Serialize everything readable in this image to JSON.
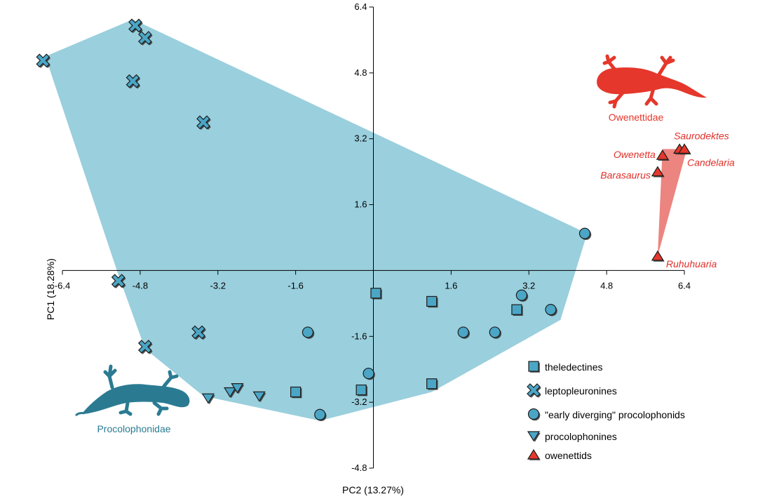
{
  "chart_data": {
    "type": "scatter",
    "xlabel": "PC2 (13.27%)",
    "ylabel": "PC1 (18.28%)",
    "xlim": [
      -6.4,
      6.4
    ],
    "ylim": [
      -4.8,
      6.4
    ],
    "x_ticks": [
      -6.4,
      -4.8,
      -3.2,
      -1.6,
      1.6,
      3.2,
      4.8,
      6.4
    ],
    "y_ticks": [
      6.4,
      4.8,
      3.2,
      1.6,
      -1.6,
      -3.2,
      -4.8
    ],
    "x_tick_labels": [
      "-6.4",
      "-4.8",
      "-3.2",
      "-1.6",
      "1.6",
      "3.2",
      "4.8",
      "6.4"
    ],
    "y_tick_labels": [
      "6.4",
      "4.8",
      "3.2",
      "1.6",
      "-1.6",
      "-3.2",
      "-4.8"
    ],
    "grid": false,
    "legend_position": "bottom-right",
    "colors": {
      "procolophonid": "#4ba6c6",
      "procolophonid_hull": "#9acfdd",
      "owenettid": "#e5372b",
      "owenettid_hull": "#ec8480",
      "procolophonidae_silhouette": "#2a7b92",
      "owenettidae_silhouette": "#e5372b"
    },
    "series": [
      {
        "name": "theledectines",
        "marker": "square",
        "points": [
          {
            "x": 0.05,
            "y": -0.55
          },
          {
            "x": 1.2,
            "y": -0.75
          },
          {
            "x": 2.95,
            "y": -0.95
          },
          {
            "x": -1.6,
            "y": -2.95
          },
          {
            "x": -0.25,
            "y": -2.9
          },
          {
            "x": 1.2,
            "y": -2.75
          }
        ]
      },
      {
        "name": "leptopleuronines",
        "marker": "x",
        "points": [
          {
            "x": -4.9,
            "y": 5.95
          },
          {
            "x": -4.7,
            "y": 5.65
          },
          {
            "x": -6.8,
            "y": 5.1
          },
          {
            "x": -4.95,
            "y": 4.6
          },
          {
            "x": -3.5,
            "y": 3.6
          },
          {
            "x": -5.25,
            "y": -0.25
          },
          {
            "x": -3.6,
            "y": -1.5
          },
          {
            "x": -4.7,
            "y": -1.85
          }
        ]
      },
      {
        "name": "\"early diverging\" procolophonids",
        "marker": "circle",
        "points": [
          {
            "x": 4.35,
            "y": 0.9
          },
          {
            "x": 3.05,
            "y": -0.6
          },
          {
            "x": 3.65,
            "y": -0.95
          },
          {
            "x": 1.85,
            "y": -1.5
          },
          {
            "x": 2.5,
            "y": -1.5
          },
          {
            "x": -1.35,
            "y": -1.5
          },
          {
            "x": -0.1,
            "y": -2.5
          },
          {
            "x": -1.1,
            "y": -3.5
          }
        ]
      },
      {
        "name": "procolophonines",
        "marker": "triangle-down",
        "points": [
          {
            "x": -3.4,
            "y": -3.1
          },
          {
            "x": -2.95,
            "y": -2.95
          },
          {
            "x": -2.8,
            "y": -2.85
          },
          {
            "x": -2.35,
            "y": -3.05
          }
        ]
      },
      {
        "name": "owenettids",
        "marker": "triangle-up",
        "points": [
          {
            "x": 6.3,
            "y": 2.95,
            "label": "Saurodektes"
          },
          {
            "x": 6.4,
            "y": 2.95,
            "label": "Candelaria"
          },
          {
            "x": 5.95,
            "y": 2.8,
            "label": "Owenetta"
          },
          {
            "x": 5.85,
            "y": 2.4,
            "label": "Barasaurus"
          },
          {
            "x": 5.85,
            "y": 0.35,
            "label": "Ruhuhuaria"
          }
        ]
      }
    ],
    "hulls": [
      {
        "group": "Procolophonidae",
        "vertices": [
          [
            -4.95,
            6.1
          ],
          [
            4.4,
            0.9
          ],
          [
            3.85,
            -1.2
          ],
          [
            1.2,
            -2.95
          ],
          [
            -1.1,
            -3.65
          ],
          [
            -3.5,
            -3.05
          ],
          [
            -4.7,
            -1.9
          ],
          [
            -5.25,
            -0.1
          ],
          [
            -6.75,
            5.2
          ]
        ]
      },
      {
        "group": "Owenettidae",
        "vertices": [
          [
            6.45,
            2.95
          ],
          [
            5.95,
            2.95
          ],
          [
            5.85,
            0.35
          ]
        ]
      }
    ],
    "annotations": [
      {
        "text": "Owenettidae"
      },
      {
        "text": "Procolophonidae"
      }
    ]
  }
}
